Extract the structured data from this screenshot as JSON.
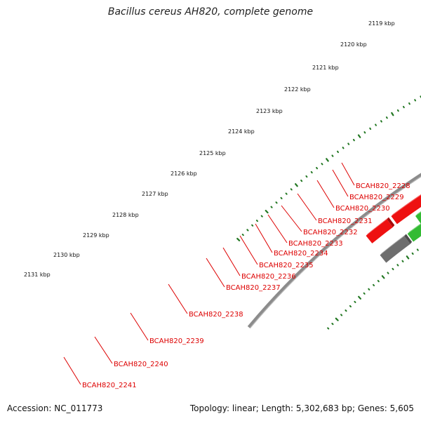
{
  "title": "Bacillus cereus AH820, complete genome",
  "footer": {
    "accession": "Accession: NC_011773",
    "summary": "Topology: linear; Length: 5,302,683 bp; Genes: 5,605"
  },
  "colors": {
    "backbone": "#8c8c8c",
    "gene_red": "#ee1111",
    "gene_gray": "#6e6e6e",
    "gene_lime": "#99e626",
    "gene_green": "#33bb33",
    "gene_orange": "#ff9900",
    "gene_cyan": "#11c9d2",
    "gene_purple": "#4a3f9e",
    "tick_green": "#227722",
    "label_red": "#dd0000"
  },
  "ticks": [
    "2119 kbp",
    "2120 kbp",
    "2121 kbp",
    "2122 kbp",
    "2123 kbp",
    "2124 kbp",
    "2125 kbp",
    "2126 kbp",
    "2127 kbp",
    "2128 kbp",
    "2129 kbp",
    "2130 kbp",
    "2131 kbp"
  ],
  "gene_labels": [
    "BCAH820_2228",
    "BCAH820_2229",
    "BCAH820_2230",
    "BCAH820_2231",
    "BCAH820_2232",
    "BCAH820_2233",
    "BCAH820_2234",
    "BCAH820_2235",
    "BCAH820_2236",
    "BCAH820_2237",
    "BCAH820_2238",
    "BCAH820_2239",
    "BCAH820_2240",
    "BCAH820_2241"
  ]
}
